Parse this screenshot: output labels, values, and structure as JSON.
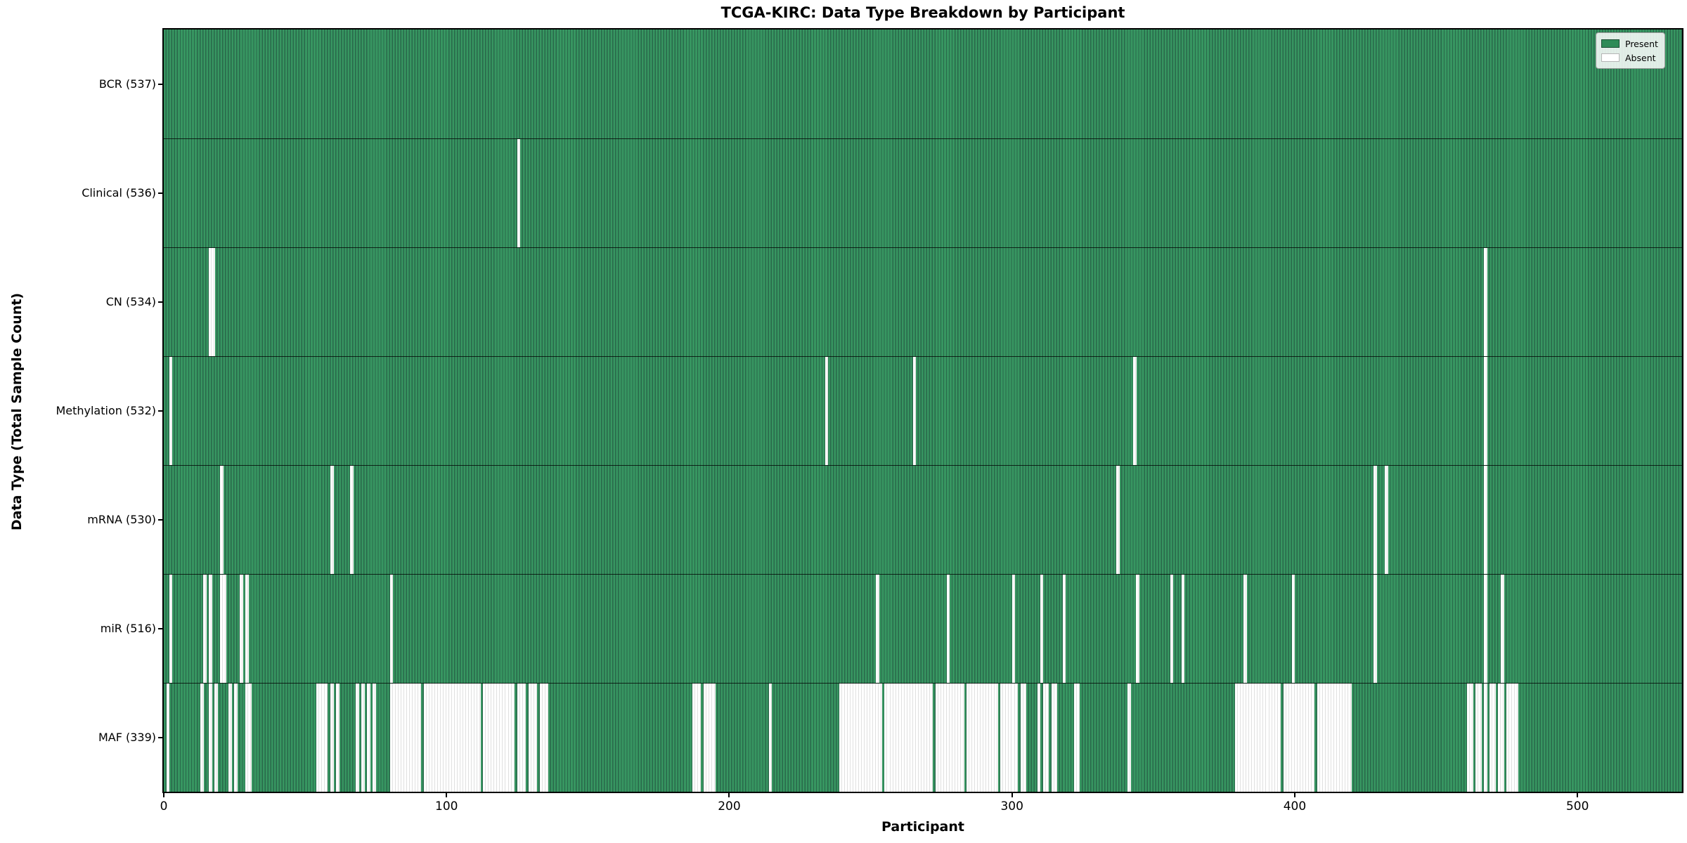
{
  "chart_data": {
    "type": "heatmap",
    "title": "TCGA-KIRC: Data Type Breakdown by Participant",
    "xlabel": "Participant",
    "ylabel": "Data Type (Total Sample Count)",
    "legend": {
      "present_label": "Present",
      "absent_label": "Absent"
    },
    "legend_position": "upper right",
    "x_ticks": [
      0,
      100,
      200,
      300,
      400,
      500
    ],
    "x_range": [
      0,
      537
    ],
    "n_participants": 537,
    "grid": false,
    "colors": {
      "present": "#2e8b57",
      "present_light": "#379661",
      "present_dark": "#29684a",
      "absent": "#ffffff",
      "absent_edge": "#e0e0e0",
      "row_separator": "#1a1a1a"
    },
    "rows": [
      {
        "name": "BCR",
        "label": "BCR (537)",
        "total": 537,
        "absent_singles": [],
        "absent_ranges": []
      },
      {
        "name": "Clinical",
        "label": "Clinical (536)",
        "total": 536,
        "absent_singles": [
          125
        ],
        "absent_ranges": []
      },
      {
        "name": "CN",
        "label": "CN (534)",
        "total": 534,
        "absent_singles": [
          467
        ],
        "absent_ranges": [
          [
            16,
            17
          ]
        ]
      },
      {
        "name": "Methylation",
        "label": "Methylation (532)",
        "total": 532,
        "absent_singles": [
          2,
          234,
          265,
          343,
          467
        ],
        "absent_ranges": []
      },
      {
        "name": "mRNA",
        "label": "mRNA (530)",
        "total": 530,
        "absent_singles": [
          20,
          59,
          66,
          337,
          428,
          432,
          467
        ],
        "absent_ranges": []
      },
      {
        "name": "miR",
        "label": "miR (516)",
        "total": 516,
        "absent_singles": [
          2,
          14,
          16,
          27,
          29,
          80,
          252,
          277,
          300,
          310,
          318,
          344,
          356,
          360,
          382,
          399,
          428,
          467,
          473
        ],
        "absent_ranges": [
          [
            20,
            21
          ]
        ]
      },
      {
        "name": "MAF",
        "label": "MAF (339)",
        "total": 339,
        "absent_singles": [
          1,
          13,
          16,
          18,
          23,
          25,
          59,
          61,
          68,
          70,
          72,
          74,
          131,
          214,
          309,
          341,
          467
        ],
        "absent_ranges": [
          [
            29,
            30
          ],
          [
            54,
            57
          ],
          [
            80,
            90
          ],
          [
            92,
            111
          ],
          [
            113,
            123
          ],
          [
            125,
            127
          ],
          [
            129,
            130
          ],
          [
            133,
            135
          ],
          [
            187,
            189
          ],
          [
            191,
            194
          ],
          [
            239,
            253
          ],
          [
            255,
            271
          ],
          [
            273,
            282
          ],
          [
            284,
            294
          ],
          [
            296,
            301
          ],
          [
            303,
            304
          ],
          [
            311,
            312
          ],
          [
            314,
            315
          ],
          [
            322,
            323
          ],
          [
            379,
            394
          ],
          [
            396,
            406
          ],
          [
            408,
            419
          ],
          [
            461,
            462
          ],
          [
            464,
            465
          ],
          [
            469,
            470
          ],
          [
            472,
            473
          ],
          [
            475,
            478
          ]
        ]
      }
    ]
  }
}
